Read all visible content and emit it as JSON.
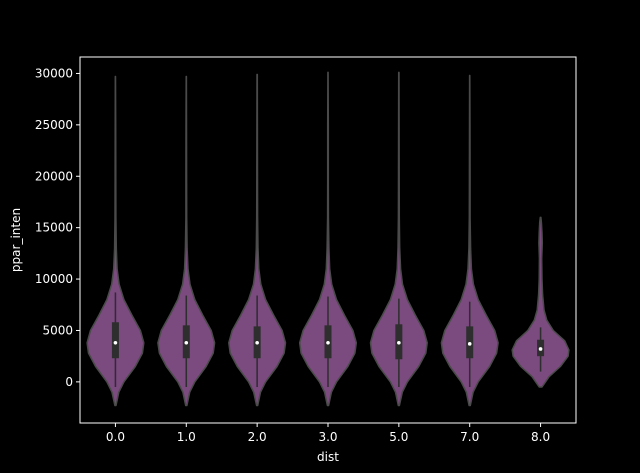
{
  "chart_data": {
    "type": "violin",
    "title": "",
    "xlabel": "dist",
    "ylabel": "ppar_inten",
    "categories": [
      "0.0",
      "1.0",
      "2.0",
      "3.0",
      "5.0",
      "7.0",
      "8.0"
    ],
    "ylim": [
      -4000,
      31600
    ],
    "yticks": [
      0,
      5000,
      10000,
      15000,
      20000,
      25000,
      30000
    ],
    "grid": false,
    "legend": "none",
    "colors": {
      "background": "#000000",
      "violin_fill": "#7b4a7f",
      "violin_edge": "#4a4a4a",
      "box": "#2e2e2e",
      "median": "#ffffff",
      "axes": "#ffffff"
    },
    "violins": [
      {
        "category": "0.0",
        "min": -2300,
        "max": 29700,
        "q1": 2300,
        "median": 3800,
        "q3": 5800,
        "whisker_low": -500,
        "whisker_high": 8700,
        "profile": [
          [
            -2300,
            0.02
          ],
          [
            -1000,
            0.12
          ],
          [
            0,
            0.3
          ],
          [
            1500,
            0.7
          ],
          [
            2800,
            0.95
          ],
          [
            3800,
            1.0
          ],
          [
            5000,
            0.88
          ],
          [
            6500,
            0.58
          ],
          [
            8000,
            0.3
          ],
          [
            9500,
            0.13
          ],
          [
            11000,
            0.06
          ],
          [
            13000,
            0.03
          ],
          [
            16000,
            0.015
          ],
          [
            20000,
            0.012
          ],
          [
            25000,
            0.009
          ],
          [
            29700,
            0.004
          ]
        ]
      },
      {
        "category": "1.0",
        "min": -2300,
        "max": 29700,
        "q1": 2300,
        "median": 3800,
        "q3": 5500,
        "whisker_low": -500,
        "whisker_high": 8400,
        "profile": [
          [
            -2300,
            0.02
          ],
          [
            -1000,
            0.12
          ],
          [
            0,
            0.3
          ],
          [
            1500,
            0.7
          ],
          [
            2800,
            0.95
          ],
          [
            3800,
            1.0
          ],
          [
            5000,
            0.88
          ],
          [
            6500,
            0.58
          ],
          [
            8000,
            0.3
          ],
          [
            9500,
            0.13
          ],
          [
            11000,
            0.06
          ],
          [
            13000,
            0.03
          ],
          [
            16000,
            0.015
          ],
          [
            20000,
            0.012
          ],
          [
            25000,
            0.009
          ],
          [
            29700,
            0.004
          ]
        ]
      },
      {
        "category": "2.0",
        "min": -2300,
        "max": 29900,
        "q1": 2300,
        "median": 3800,
        "q3": 5400,
        "whisker_low": -500,
        "whisker_high": 8400,
        "profile": [
          [
            -2300,
            0.02
          ],
          [
            -1000,
            0.12
          ],
          [
            0,
            0.3
          ],
          [
            1500,
            0.7
          ],
          [
            2800,
            0.95
          ],
          [
            3800,
            1.0
          ],
          [
            5000,
            0.88
          ],
          [
            6500,
            0.58
          ],
          [
            8000,
            0.3
          ],
          [
            9500,
            0.13
          ],
          [
            11000,
            0.06
          ],
          [
            13000,
            0.03
          ],
          [
            16000,
            0.015
          ],
          [
            20000,
            0.012
          ],
          [
            25000,
            0.009
          ],
          [
            29900,
            0.004
          ]
        ]
      },
      {
        "category": "3.0",
        "min": -2300,
        "max": 30100,
        "q1": 2300,
        "median": 3800,
        "q3": 5500,
        "whisker_low": -500,
        "whisker_high": 8300,
        "profile": [
          [
            -2300,
            0.02
          ],
          [
            -1000,
            0.12
          ],
          [
            0,
            0.3
          ],
          [
            1500,
            0.7
          ],
          [
            2800,
            0.95
          ],
          [
            3800,
            1.0
          ],
          [
            5000,
            0.88
          ],
          [
            6500,
            0.58
          ],
          [
            8000,
            0.3
          ],
          [
            9500,
            0.13
          ],
          [
            11000,
            0.06
          ],
          [
            13000,
            0.03
          ],
          [
            16000,
            0.015
          ],
          [
            20000,
            0.012
          ],
          [
            25000,
            0.009
          ],
          [
            30100,
            0.004
          ]
        ]
      },
      {
        "category": "5.0",
        "min": -2300,
        "max": 30100,
        "q1": 2200,
        "median": 3800,
        "q3": 5600,
        "whisker_low": -500,
        "whisker_high": 8100,
        "profile": [
          [
            -2300,
            0.02
          ],
          [
            -1000,
            0.12
          ],
          [
            0,
            0.3
          ],
          [
            1500,
            0.7
          ],
          [
            2800,
            0.95
          ],
          [
            3800,
            1.0
          ],
          [
            5000,
            0.88
          ],
          [
            6500,
            0.58
          ],
          [
            8000,
            0.3
          ],
          [
            9500,
            0.13
          ],
          [
            11000,
            0.06
          ],
          [
            13000,
            0.03
          ],
          [
            16000,
            0.015
          ],
          [
            20000,
            0.012
          ],
          [
            25000,
            0.009
          ],
          [
            30100,
            0.004
          ]
        ]
      },
      {
        "category": "7.0",
        "min": -2300,
        "max": 29800,
        "q1": 2300,
        "median": 3700,
        "q3": 5400,
        "whisker_low": -500,
        "whisker_high": 7800,
        "profile": [
          [
            -2300,
            0.02
          ],
          [
            -1000,
            0.12
          ],
          [
            0,
            0.3
          ],
          [
            1500,
            0.7
          ],
          [
            2800,
            0.95
          ],
          [
            3800,
            1.0
          ],
          [
            5000,
            0.88
          ],
          [
            6500,
            0.58
          ],
          [
            8000,
            0.3
          ],
          [
            9500,
            0.13
          ],
          [
            11000,
            0.06
          ],
          [
            13000,
            0.03
          ],
          [
            16000,
            0.015
          ],
          [
            20000,
            0.012
          ],
          [
            25000,
            0.009
          ],
          [
            29800,
            0.004
          ]
        ]
      },
      {
        "category": "8.0",
        "min": -500,
        "max": 16000,
        "q1": 2500,
        "median": 3200,
        "q3": 4100,
        "whisker_low": 1000,
        "whisker_high": 5300,
        "profile": [
          [
            -500,
            0.05
          ],
          [
            500,
            0.3
          ],
          [
            1500,
            0.7
          ],
          [
            2500,
            0.97
          ],
          [
            3100,
            1.0
          ],
          [
            4000,
            0.85
          ],
          [
            5000,
            0.45
          ],
          [
            6000,
            0.22
          ],
          [
            7000,
            0.12
          ],
          [
            8500,
            0.07
          ],
          [
            10000,
            0.05
          ],
          [
            12000,
            0.04
          ],
          [
            13500,
            0.06
          ],
          [
            14500,
            0.05
          ],
          [
            15500,
            0.03
          ],
          [
            16000,
            0.01
          ]
        ]
      }
    ]
  }
}
